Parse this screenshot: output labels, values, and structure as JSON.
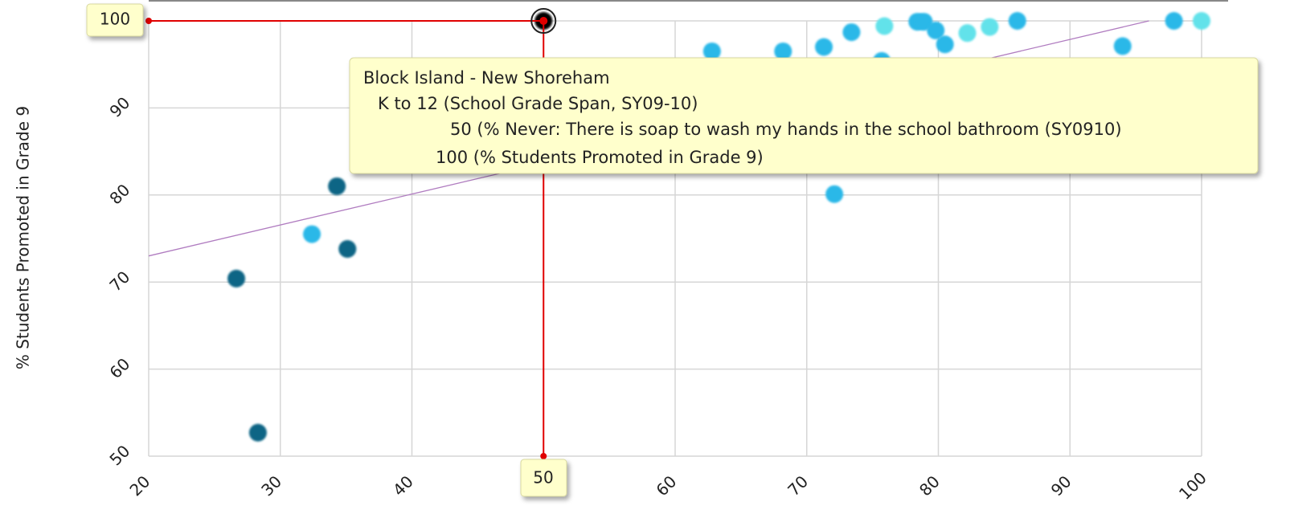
{
  "chart_data": {
    "type": "scatter",
    "y_label": "% Students Promoted in Grade 9",
    "xlim": [
      20,
      100
    ],
    "xticks": [
      20,
      30,
      40,
      50,
      60,
      70,
      80,
      90,
      100
    ],
    "ylim": [
      50,
      100
    ],
    "yticks": [
      50,
      60,
      70,
      80,
      90,
      100
    ],
    "grid": true,
    "x": [
      26.66,
      28.3,
      32.4,
      34.3,
      35.1,
      50,
      62.8,
      68.2,
      71.3,
      72.1,
      73.4,
      75.7,
      75.9,
      78.4,
      78.9,
      79.8,
      80.5,
      82.2,
      83.9,
      86.0,
      94.0,
      97.9,
      100
    ],
    "values": [
      70.4,
      52.7,
      75.5,
      81.0,
      73.8,
      100,
      96.5,
      96.5,
      97.0,
      80.1,
      98.7,
      95.4,
      99.4,
      99.9,
      99.9,
      98.9,
      97.3,
      98.6,
      99.3,
      100,
      97.1,
      100,
      100
    ],
    "colors": [
      "#0b6585",
      "#0b6585",
      "#2bb8e8",
      "#0b6585",
      "#0b6585",
      "#000000",
      "#2bb8e8",
      "#2bb8e8",
      "#2bb8e8",
      "#2bb8e8",
      "#2bb8e8",
      "#2bb8e8",
      "#62e2ea",
      "#2bb8e8",
      "#2bb8e8",
      "#2bb8e8",
      "#2bb8e8",
      "#62e2ea",
      "#62e2ea",
      "#2bb8e8",
      "#2bb8e8",
      "#2bb8e8",
      "#62e2ea"
    ],
    "trendline": {
      "x": [
        20,
        96
      ],
      "y": [
        73,
        100
      ],
      "color": "#b07cc0"
    },
    "crosshair": {
      "x": 50,
      "y": 100,
      "color": "#e00000"
    },
    "tooltip": [
      "Block Island - New Shoreham",
      "K to 12 (School Grade Span, SY09-10)",
      "50 (% Never: There is soap to wash my hands in the school bathroom (SY0910)",
      "100 (% Students Promoted in Grade 9)"
    ]
  }
}
